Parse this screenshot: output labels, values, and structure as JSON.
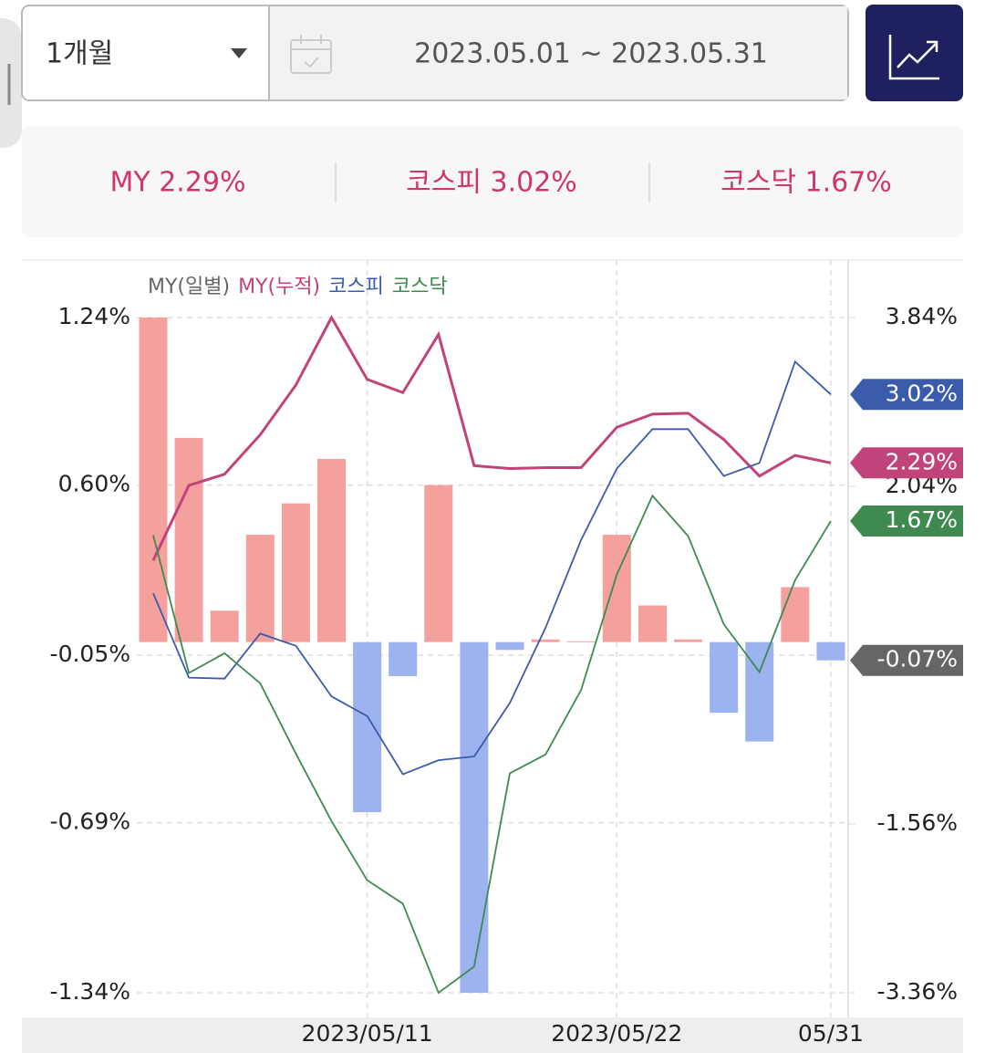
{
  "controls": {
    "period": "1개월",
    "date_range": "2023.05.01 ~ 2023.05.31"
  },
  "summary": [
    "MY 2.29%",
    "코스피 3.02%",
    "코스닥 1.67%"
  ],
  "chart_data": {
    "type": "combo",
    "categories": [
      null,
      null,
      null,
      null,
      null,
      null,
      "2023/05/11",
      null,
      null,
      null,
      null,
      null,
      null,
      "2023/05/22",
      null,
      null,
      null,
      null,
      null,
      "05/31"
    ],
    "ylim": [
      -1.34,
      1.24
    ],
    "yticks": [
      {
        "value": 1.24,
        "label": "1.24%"
      },
      {
        "value": 0.6,
        "label": "0.60%"
      },
      {
        "value": -0.05,
        "label": "-0.05%"
      },
      {
        "value": -0.69,
        "label": "-0.69%"
      },
      {
        "value": -1.34,
        "label": "-1.34%"
      }
    ],
    "y2lim": [
      -3.36,
      3.84
    ],
    "y2ticks": [
      {
        "value": 3.84,
        "label": "3.84%"
      },
      {
        "value": 2.04,
        "label": "2.04%"
      },
      {
        "value": -1.56,
        "label": "-1.56%"
      },
      {
        "value": -3.36,
        "label": "-3.36%"
      }
    ],
    "grid": true,
    "series": [
      {
        "name": "MY(일별)",
        "type": "bar",
        "color": "#666666",
        "positive_color": "#f4a09c",
        "negative_color": "#9db3f0",
        "values": [
          1.24,
          0.78,
          0.12,
          0.41,
          0.53,
          0.7,
          -0.65,
          -0.13,
          0.6,
          -1.34,
          -0.03,
          0.01,
          0.003,
          0.41,
          0.14,
          0.01,
          -0.27,
          -0.38,
          0.21,
          -0.07
        ],
        "value_labels": [
          null,
          null,
          null,
          null,
          null,
          null,
          null,
          null,
          null,
          null,
          null,
          null,
          null,
          null,
          null,
          null,
          null,
          null,
          null,
          "-0.07%"
        ]
      },
      {
        "name": "MY(누적)",
        "type": "line",
        "axis": "y2",
        "color": "#c0447a",
        "values": [
          1.25,
          2.05,
          2.17,
          2.59,
          3.12,
          3.84,
          3.18,
          3.04,
          3.66,
          2.26,
          2.23,
          2.24,
          2.24,
          2.67,
          2.81,
          2.82,
          2.54,
          2.15,
          2.37,
          2.29
        ],
        "value_labels": [
          null,
          null,
          null,
          null,
          null,
          null,
          null,
          null,
          null,
          null,
          null,
          null,
          null,
          null,
          null,
          null,
          null,
          null,
          null,
          "2.29%"
        ]
      },
      {
        "name": "코스피",
        "type": "line",
        "axis": "y2",
        "color": "#3b5bab",
        "values": [
          0.9,
          0.0,
          -0.01,
          0.47,
          0.34,
          -0.2,
          -0.41,
          -1.03,
          -0.88,
          -0.84,
          -0.27,
          0.53,
          1.47,
          2.23,
          2.65,
          2.65,
          2.15,
          2.29,
          3.37,
          3.02
        ],
        "value_labels": [
          null,
          null,
          null,
          null,
          null,
          null,
          null,
          null,
          null,
          null,
          null,
          null,
          null,
          null,
          null,
          null,
          null,
          null,
          null,
          "3.02%"
        ]
      },
      {
        "name": "코스닥",
        "type": "line",
        "axis": "y2",
        "color": "#3f8a50",
        "values": [
          1.52,
          0.05,
          0.26,
          -0.06,
          -0.81,
          -1.53,
          -2.16,
          -2.41,
          -3.36,
          -3.08,
          -1.02,
          -0.82,
          -0.13,
          1.1,
          1.94,
          1.51,
          0.57,
          0.06,
          1.04,
          1.67
        ],
        "value_labels": [
          null,
          null,
          null,
          null,
          null,
          null,
          null,
          null,
          null,
          null,
          null,
          null,
          null,
          null,
          null,
          null,
          null,
          null,
          null,
          "1.67%"
        ]
      }
    ]
  }
}
